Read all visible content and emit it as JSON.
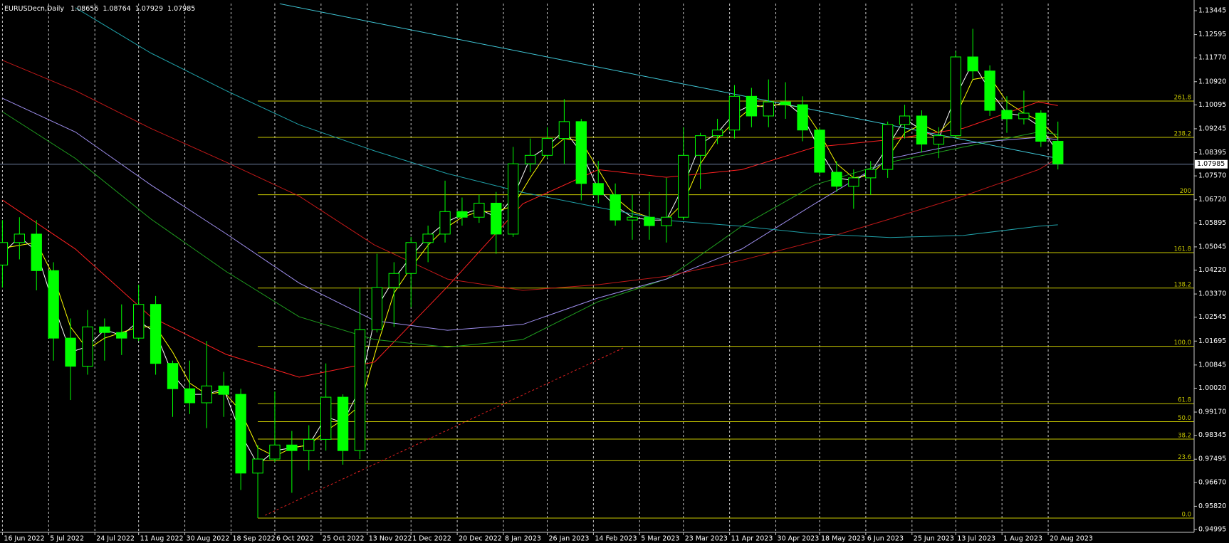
{
  "chart_data": {
    "type": "candlestick",
    "symbol": "EURUSDecn,Daily",
    "last": {
      "open": 1.08656,
      "high": 1.08764,
      "low": 1.07929,
      "close": 1.07985
    },
    "candle_color": "#00ff00",
    "price_line_color": "#6f7f9f",
    "grid": "x",
    "xlim": [
      "15 Jun 2022",
      "19 Oct 2023"
    ],
    "ylim": [
      0.94894,
      1.13698
    ],
    "xticks": [
      "16 Jun 2022",
      "5 Jul 2022",
      "24 Jul 2022",
      "11 Aug 2022",
      "30 Aug 2022",
      "18 Sep 2022",
      "6 Oct 2022",
      "25 Oct 2022",
      "13 Nov 2022",
      "1 Dec 2022",
      "20 Dec 2022",
      "8 Jan 2023",
      "26 Jan 2023",
      "14 Feb 2023",
      "5 Mar 2023",
      "23 Mar 2023",
      "11 Apr 2023",
      "30 Apr 2023",
      "18 May 2023",
      "6 Jun 2023",
      "25 Jun 2023",
      "13 Jul 2023",
      "1 Aug 2023",
      "20 Aug 2023"
    ],
    "yticks": [
      1.13445,
      1.12595,
      {
        "value": 1.1177,
        "label": "1.11770"
      },
      {
        "value": 1.1092,
        "label": "1.10920"
      },
      1.10095,
      1.09245,
      1.08395,
      {
        "value": 1.0757,
        "label": "1.07570"
      },
      {
        "value": 1.0672,
        "label": "1.06720"
      },
      1.05895,
      1.05045,
      {
        "value": 1.0422,
        "label": "1.04220"
      },
      {
        "value": 1.0337,
        "label": "1.03370"
      },
      1.02545,
      1.01695,
      1.00845,
      {
        "value": 1.0002,
        "label": "1.00020"
      },
      {
        "value": 0.9917,
        "label": "0.99170"
      },
      0.98345,
      0.97495,
      {
        "value": 0.9667,
        "label": "0.96670"
      },
      {
        "value": 0.9582,
        "label": "0.95820"
      },
      0.94995
    ],
    "x": [
      "16 Jun 2022",
      "23 Jun 2022",
      "30 Jun 2022",
      "7 Jul 2022",
      "14 Jul 2022",
      "21 Jul 2022",
      "28 Jul 2022",
      "4 Aug 2022",
      "11 Aug 2022",
      "18 Aug 2022",
      "25 Aug 2022",
      "1 Sep 2022",
      "8 Sep 2022",
      "15 Sep 2022",
      "22 Sep 2022",
      "29 Sep 2022",
      "6 Oct 2022",
      "13 Oct 2022",
      "20 Oct 2022",
      "27 Oct 2022",
      "3 Nov 2022",
      "10 Nov 2022",
      "17 Nov 2022",
      "24 Nov 2022",
      "1 Dec 2022",
      "8 Dec 2022",
      "15 Dec 2022",
      "22 Dec 2022",
      "29 Dec 2022",
      "5 Jan 2023",
      "12 Jan 2023",
      "19 Jan 2023",
      "26 Jan 2023",
      "2 Feb 2023",
      "9 Feb 2023",
      "16 Feb 2023",
      "23 Feb 2023",
      "2 Mar 2023",
      "9 Mar 2023",
      "16 Mar 2023",
      "23 Mar 2023",
      "30 Mar 2023",
      "6 Apr 2023",
      "13 Apr 2023",
      "20 Apr 2023",
      "27 Apr 2023",
      "4 May 2023",
      "11 May 2023",
      "18 May 2023",
      "25 May 2023",
      "1 Jun 2023",
      "8 Jun 2023",
      "15 Jun 2023",
      "22 Jun 2023",
      "29 Jun 2023",
      "6 Jul 2023",
      "13 Jul 2023",
      "20 Jul 2023",
      "27 Jul 2023",
      "3 Aug 2023",
      "10 Aug 2023",
      "17 Aug 2023",
      "24 Aug 2023"
    ],
    "open": [
      1.044,
      1.052,
      1.055,
      1.042,
      1.018,
      1.008,
      1.022,
      1.02,
      1.018,
      1.03,
      1.009,
      1.0,
      0.995,
      1.001,
      0.998,
      0.97,
      0.975,
      0.98,
      0.978,
      0.982,
      0.997,
      0.978,
      1.021,
      1.036,
      1.041,
      1.052,
      1.055,
      1.063,
      1.061,
      1.066,
      1.055,
      1.08,
      1.083,
      1.089,
      1.095,
      1.073,
      1.069,
      1.06,
      1.061,
      1.058,
      1.061,
      1.083,
      1.09,
      1.092,
      1.104,
      1.097,
      1.102,
      1.101,
      1.092,
      1.077,
      1.072,
      1.075,
      1.078,
      1.094,
      1.097,
      1.087,
      1.09,
      1.118,
      1.113,
      1.099,
      1.096,
      1.098,
      1.088
    ],
    "high": [
      1.06,
      1.061,
      1.06,
      1.045,
      1.025,
      1.028,
      1.025,
      1.03,
      1.037,
      1.033,
      1.01,
      1.01,
      1.017,
      1.006,
      1.0,
      0.98,
      0.999,
      0.985,
      0.987,
      1.009,
      0.998,
      1.036,
      1.048,
      1.045,
      1.054,
      1.058,
      1.074,
      1.068,
      1.069,
      1.07,
      1.086,
      1.089,
      1.093,
      1.103,
      1.096,
      1.081,
      1.073,
      1.069,
      1.07,
      1.075,
      1.093,
      1.091,
      1.096,
      1.108,
      1.107,
      1.11,
      1.109,
      1.104,
      1.093,
      1.081,
      1.078,
      1.081,
      1.095,
      1.101,
      1.099,
      1.093,
      1.12,
      1.128,
      1.115,
      1.104,
      1.106,
      1.099,
      1.095
    ],
    "low": [
      1.036,
      1.046,
      1.035,
      1.01,
      0.996,
      1.005,
      1.01,
      1.012,
      1.017,
      1.005,
      0.99,
      0.991,
      0.986,
      0.99,
      0.964,
      0.954,
      0.974,
      0.963,
      0.971,
      0.978,
      0.973,
      0.975,
      1.02,
      1.022,
      1.029,
      1.045,
      1.052,
      1.058,
      1.059,
      1.048,
      1.054,
      1.077,
      1.082,
      1.08,
      1.067,
      1.066,
      1.058,
      1.053,
      1.053,
      1.052,
      1.06,
      1.071,
      1.087,
      1.089,
      1.093,
      1.093,
      1.096,
      1.088,
      1.076,
      1.07,
      1.064,
      1.069,
      1.075,
      1.089,
      1.084,
      1.082,
      1.089,
      1.11,
      1.097,
      1.091,
      1.094,
      1.086,
      1.078
    ],
    "close": [
      1.052,
      1.055,
      1.042,
      1.018,
      1.008,
      1.022,
      1.02,
      1.018,
      1.03,
      1.009,
      1.0,
      0.995,
      1.001,
      0.998,
      0.97,
      0.975,
      0.98,
      0.978,
      0.982,
      0.997,
      0.978,
      1.021,
      1.036,
      1.041,
      1.052,
      1.055,
      1.063,
      1.061,
      1.066,
      1.055,
      1.08,
      1.083,
      1.089,
      1.095,
      1.073,
      1.069,
      1.06,
      1.061,
      1.058,
      1.061,
      1.083,
      1.09,
      1.092,
      1.104,
      1.097,
      1.102,
      1.101,
      1.092,
      1.077,
      1.072,
      1.075,
      1.078,
      1.094,
      1.097,
      1.087,
      1.09,
      1.118,
      1.113,
      1.099,
      1.096,
      1.098,
      1.088,
      1.08
    ],
    "indicators": [
      {
        "color": "#ffffff",
        "x": [
          "16 Jun 2022",
          "23 Jun 2022",
          "30 Jun 2022",
          "7 Jul 2022",
          "14 Jul 2022",
          "21 Jul 2022",
          "28 Jul 2022",
          "4 Aug 2022",
          "11 Aug 2022",
          "18 Aug 2022",
          "25 Aug 2022",
          "1 Sep 2022",
          "8 Sep 2022",
          "15 Sep 2022",
          "22 Sep 2022",
          "29 Sep 2022",
          "6 Oct 2022",
          "13 Oct 2022",
          "20 Oct 2022",
          "27 Oct 2022",
          "3 Nov 2022",
          "10 Nov 2022",
          "17 Nov 2022",
          "24 Nov 2022",
          "1 Dec 2022",
          "8 Dec 2022",
          "15 Dec 2022",
          "22 Dec 2022",
          "29 Dec 2022",
          "5 Jan 2023",
          "12 Jan 2023",
          "19 Jan 2023",
          "26 Jan 2023",
          "2 Feb 2023",
          "9 Feb 2023",
          "16 Feb 2023",
          "23 Feb 2023",
          "2 Mar 2023",
          "9 Mar 2023",
          "16 Mar 2023",
          "23 Mar 2023",
          "30 Mar 2023",
          "6 Apr 2023",
          "13 Apr 2023",
          "20 Apr 2023",
          "27 Apr 2023",
          "4 May 2023",
          "11 May 2023",
          "18 May 2023",
          "25 May 2023",
          "1 Jun 2023",
          "8 Jun 2023",
          "15 Jun 2023",
          "22 Jun 2023",
          "29 Jun 2023",
          "6 Jul 2023",
          "13 Jul 2023",
          "20 Jul 2023",
          "27 Jul 2023",
          "3 Aug 2023",
          "10 Aug 2023",
          "17 Aug 2023",
          "24 Aug 2023"
        ],
        "values": [
          1.048,
          1.054,
          1.049,
          1.03,
          1.013,
          1.015,
          1.021,
          1.019,
          1.024,
          1.02,
          1.005,
          0.998,
          0.998,
          1.0,
          0.984,
          0.973,
          0.978,
          0.979,
          0.98,
          0.99,
          0.988,
          1.0,
          1.029,
          1.039,
          1.047,
          1.054,
          1.059,
          1.062,
          1.064,
          1.061,
          1.068,
          1.082,
          1.086,
          1.092,
          1.084,
          1.071,
          1.065,
          1.061,
          1.06,
          1.06,
          1.072,
          1.087,
          1.091,
          1.098,
          1.101,
          1.1,
          1.102,
          1.097,
          1.085,
          1.075,
          1.074,
          1.077,
          1.086,
          1.096,
          1.092,
          1.089,
          1.104,
          1.116,
          1.106,
          1.098,
          1.097,
          1.093,
          1.084
        ]
      },
      {
        "color": "#ffff00",
        "x": [
          "16 Jun 2022",
          "23 Jun 2022",
          "30 Jun 2022",
          "7 Jul 2022",
          "14 Jul 2022",
          "21 Jul 2022",
          "28 Jul 2022",
          "4 Aug 2022",
          "11 Aug 2022",
          "18 Aug 2022",
          "25 Aug 2022",
          "1 Sep 2022",
          "8 Sep 2022",
          "15 Sep 2022",
          "22 Sep 2022",
          "29 Sep 2022",
          "6 Oct 2022",
          "13 Oct 2022",
          "20 Oct 2022",
          "27 Oct 2022",
          "3 Nov 2022",
          "10 Nov 2022",
          "17 Nov 2022",
          "24 Nov 2022",
          "1 Dec 2022",
          "8 Dec 2022",
          "15 Dec 2022",
          "22 Dec 2022",
          "29 Dec 2022",
          "5 Jan 2023",
          "12 Jan 2023",
          "19 Jan 2023",
          "26 Jan 2023",
          "2 Feb 2023",
          "9 Feb 2023",
          "16 Feb 2023",
          "23 Feb 2023",
          "2 Mar 2023",
          "9 Mar 2023",
          "16 Mar 2023",
          "23 Mar 2023",
          "30 Mar 2023",
          "6 Apr 2023",
          "13 Apr 2023",
          "20 Apr 2023",
          "27 Apr 2023",
          "4 May 2023",
          "11 May 2023",
          "18 May 2023",
          "25 May 2023",
          "1 Jun 2023",
          "8 Jun 2023",
          "15 Jun 2023",
          "22 Jun 2023",
          "29 Jun 2023",
          "6 Jul 2023",
          "13 Jul 2023",
          "20 Jul 2023",
          "27 Jul 2023",
          "3 Aug 2023",
          "10 Aug 2023",
          "17 Aug 2023",
          "24 Aug 2023"
        ],
        "values": [
          1.05,
          1.051,
          1.052,
          1.04,
          1.022,
          1.014,
          1.018,
          1.02,
          1.022,
          1.022,
          1.013,
          1.002,
          0.998,
          0.999,
          0.992,
          0.979,
          0.976,
          0.979,
          0.98,
          0.985,
          0.989,
          0.994,
          1.015,
          1.034,
          1.043,
          1.051,
          1.057,
          1.061,
          1.063,
          1.063,
          1.065,
          1.075,
          1.084,
          1.089,
          1.088,
          1.078,
          1.068,
          1.063,
          1.061,
          1.06,
          1.066,
          1.08,
          1.089,
          1.095,
          1.1,
          1.101,
          1.101,
          1.1,
          1.091,
          1.08,
          1.075,
          1.076,
          1.082,
          1.091,
          1.094,
          1.091,
          1.097,
          1.11,
          1.111,
          1.102,
          1.098,
          1.095,
          1.089
        ]
      },
      {
        "color": "#ff2020",
        "x": [
          "16 Jun 2022",
          "16 Jul 2022",
          "16 Aug 2022",
          "16 Sep 2022",
          "16 Oct 2022",
          "16 Nov 2022",
          "16 Dec 2022",
          "16 Jan 2023",
          "16 Feb 2023",
          "16 Mar 2023",
          "16 Apr 2023",
          "16 May 2023",
          "16 Jun 2023",
          "16 Jul 2023",
          "16 Aug 2023",
          "24 Aug 2023"
        ],
        "values": [
          1.0671,
          1.0497,
          1.0256,
          1.0122,
          1.0041,
          1.0095,
          1.0363,
          1.0658,
          1.0779,
          1.0752,
          1.0779,
          1.0859,
          1.0886,
          1.0926,
          1.102,
          1.1007
        ]
      },
      {
        "color": "#1f9f1f",
        "x": [
          "16 Jun 2022",
          "16 Jul 2022",
          "16 Aug 2022",
          "16 Sep 2022",
          "16 Oct 2022",
          "16 Nov 2022",
          "16 Dec 2022",
          "16 Jan 2023",
          "16 Feb 2023",
          "16 Mar 2023",
          "16 Apr 2023",
          "16 May 2023",
          "16 Jun 2023",
          "16 Jul 2023",
          "16 Aug 2023",
          "24 Aug 2023"
        ],
        "values": [
          1.0985,
          1.0819,
          1.0604,
          1.0417,
          1.0256,
          1.0175,
          1.0148,
          1.0175,
          1.031,
          1.039,
          1.0578,
          1.0725,
          1.0806,
          1.0859,
          1.0913,
          1.0905
        ]
      },
      {
        "color": "#9f8fef",
        "x": [
          "16 Jun 2022",
          "16 Jul 2022",
          "16 Aug 2022",
          "16 Sep 2022",
          "16 Oct 2022",
          "16 Nov 2022",
          "16 Dec 2022",
          "16 Jan 2023",
          "16 Feb 2023",
          "16 Mar 2023",
          "16 Apr 2023",
          "16 May 2023",
          "16 Jun 2023",
          "16 Jul 2023",
          "16 Aug 2023",
          "24 Aug 2023"
        ],
        "values": [
          1.1033,
          1.0913,
          1.0725,
          1.0551,
          1.0376,
          1.0242,
          1.0208,
          1.0229,
          1.0323,
          1.039,
          1.0497,
          1.0658,
          1.0819,
          1.0872,
          1.0894,
          1.0886
        ]
      },
      {
        "color": "#c01818",
        "x": [
          "16 Jun 2022",
          "16 Jul 2022",
          "16 Aug 2022",
          "16 Sep 2022",
          "16 Oct 2022",
          "16 Nov 2022",
          "16 Dec 2022",
          "16 Jan 2023",
          "16 Feb 2023",
          "16 Mar 2023",
          "16 Apr 2023",
          "16 May 2023",
          "16 Jun 2023",
          "16 Jul 2023",
          "16 Aug 2023",
          "24 Aug 2023"
        ],
        "values": [
          1.1168,
          1.106,
          1.0926,
          1.0806,
          1.0685,
          1.0511,
          1.039,
          1.035,
          1.037,
          1.04,
          1.0457,
          1.0524,
          1.0604,
          1.0685,
          1.0779,
          1.0819
        ]
      },
      {
        "color": "#1fa0a8",
        "x": [
          "16 Jul 2022",
          "16 Aug 2022",
          "16 Sep 2022",
          "16 Oct 2022",
          "16 Nov 2022",
          "16 Dec 2022",
          "16 Jan 2023",
          "16 Feb 2023",
          "16 Mar 2023",
          "16 Apr 2023",
          "16 May 2023",
          "16 Jun 2023",
          "16 Jul 2023",
          "16 Aug 2023",
          "24 Aug 2023"
        ],
        "values": [
          1.1355,
          1.1194,
          1.106,
          1.0939,
          1.0846,
          1.0765,
          1.0698,
          1.0645,
          1.0599,
          1.0578,
          1.0551,
          1.0538,
          1.0545,
          1.0578,
          1.0583
        ]
      }
    ],
    "trendlines": [
      {
        "color": "#40c8d8",
        "dashed": false,
        "x": [
          "8 Oct 2022",
          "24 Aug 2023"
        ],
        "values": [
          1.1369,
          1.0819
        ]
      },
      {
        "color": "#e02020",
        "dashed": true,
        "x": [
          "2 Oct 2022",
          "27 Feb 2023"
        ],
        "values": [
          0.955,
          1.0148
        ]
      }
    ],
    "fib": {
      "color": "#c8c800",
      "start": "29 Sep 2022",
      "levels": [
        {
          "label": "261.8",
          "value": 1.1023
        },
        {
          "label": "238.2",
          "value": 1.0894
        },
        {
          "label": "200",
          "value": 1.069
        },
        {
          "label": "161.8",
          "value": 1.0484
        },
        {
          "label": "138.2",
          "value": 1.0358
        },
        {
          "label": "100.0",
          "value": 1.0151
        },
        {
          "label": "61.8",
          "value": 0.9947
        },
        {
          "label": "50.0",
          "value": 0.9883
        },
        {
          "label": "38.2",
          "value": 0.9821
        },
        {
          "label": "23.6",
          "value": 0.9744
        },
        {
          "label": "0.0",
          "value": 0.954
        }
      ]
    }
  }
}
